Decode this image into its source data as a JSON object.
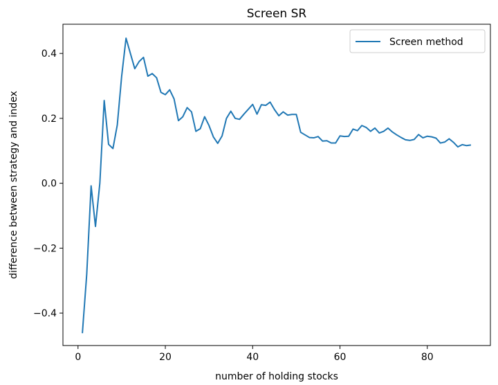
{
  "chart_data": {
    "type": "line",
    "title": "Screen SR",
    "xlabel": "number of holding stocks",
    "ylabel": "difference between strategy and index",
    "xlim": [
      -3.45,
      94.45
    ],
    "ylim": [
      -0.5,
      0.49
    ],
    "xticks": [
      0,
      20,
      40,
      60,
      80
    ],
    "xtick_labels": [
      "0",
      "20",
      "40",
      "60",
      "80"
    ],
    "yticks": [
      -0.4,
      -0.2,
      0.0,
      0.2,
      0.4
    ],
    "ytick_labels": [
      "−0.4",
      "−0.2",
      "0.0",
      "0.2",
      "0.4"
    ],
    "grid": false,
    "legend_position": "upper right",
    "series": [
      {
        "name": "Screen method",
        "color": "#1f77b4",
        "x": [
          1,
          2,
          3,
          4,
          5,
          6,
          7,
          8,
          9,
          10,
          11,
          12,
          13,
          14,
          15,
          16,
          17,
          18,
          19,
          20,
          21,
          22,
          23,
          24,
          25,
          26,
          27,
          28,
          29,
          30,
          31,
          32,
          33,
          34,
          35,
          36,
          37,
          38,
          39,
          40,
          41,
          42,
          43,
          44,
          45,
          46,
          47,
          48,
          49,
          50,
          51,
          52,
          53,
          54,
          55,
          56,
          57,
          58,
          59,
          60,
          61,
          62,
          63,
          64,
          65,
          66,
          67,
          68,
          69,
          70,
          71,
          72,
          73,
          74,
          75,
          76,
          77,
          78,
          79,
          80,
          81,
          82,
          83,
          84,
          85,
          86,
          87,
          88,
          89,
          90
        ],
        "values": [
          -0.462,
          -0.28,
          -0.008,
          -0.133,
          0.0,
          0.255,
          0.12,
          0.107,
          0.18,
          0.33,
          0.447,
          0.4,
          0.353,
          0.375,
          0.388,
          0.33,
          0.338,
          0.325,
          0.28,
          0.273,
          0.288,
          0.26,
          0.193,
          0.205,
          0.233,
          0.22,
          0.16,
          0.168,
          0.205,
          0.178,
          0.143,
          0.123,
          0.146,
          0.2,
          0.222,
          0.2,
          0.197,
          0.213,
          0.228,
          0.243,
          0.213,
          0.242,
          0.24,
          0.25,
          0.227,
          0.208,
          0.22,
          0.21,
          0.212,
          0.212,
          0.157,
          0.149,
          0.141,
          0.14,
          0.144,
          0.13,
          0.131,
          0.124,
          0.124,
          0.146,
          0.144,
          0.145,
          0.167,
          0.162,
          0.178,
          0.172,
          0.16,
          0.17,
          0.155,
          0.16,
          0.17,
          0.158,
          0.149,
          0.141,
          0.134,
          0.132,
          0.135,
          0.15,
          0.14,
          0.145,
          0.143,
          0.139,
          0.124,
          0.127,
          0.137,
          0.126,
          0.112,
          0.119,
          0.116,
          0.118
        ]
      }
    ]
  }
}
